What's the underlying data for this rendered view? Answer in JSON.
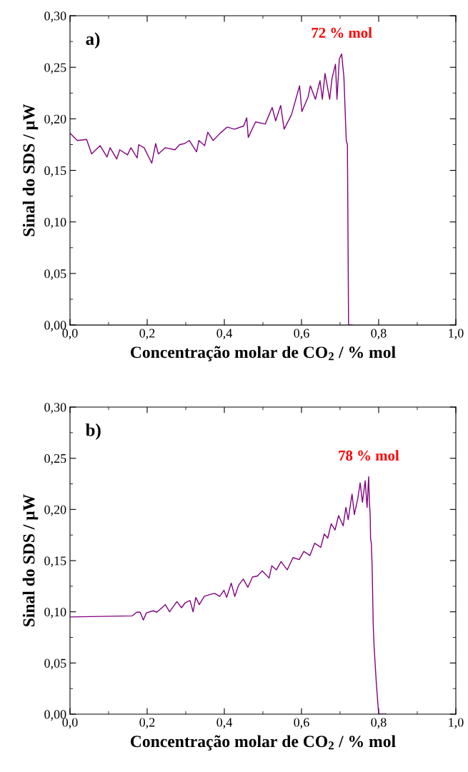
{
  "chart_data": [
    {
      "type": "line",
      "xlabel": "Concentração molar de CO$_{2}$ / % mol",
      "ylabel": "Sinal do SDS / μW",
      "annotations": [
        "a)",
        "72 % mol"
      ],
      "xlim": [
        0,
        1
      ],
      "ylim": [
        0,
        0.3
      ],
      "xticks": [
        {
          "value": 0,
          "label": "0,0"
        },
        {
          "value": 0.1,
          "label": null
        },
        {
          "value": 0.2,
          "label": "0,2"
        },
        {
          "value": 0.3,
          "label": null
        },
        {
          "value": 0.4,
          "label": "0,4"
        },
        {
          "value": 0.5,
          "label": null
        },
        {
          "value": 0.6,
          "label": "0,6"
        },
        {
          "value": 0.7,
          "label": null
        },
        {
          "value": 0.8,
          "label": "0,8"
        },
        {
          "value": 0.9,
          "label": null
        },
        {
          "value": 1.0,
          "label": "1,0"
        }
      ],
      "yticks": [
        {
          "value": 0,
          "label": "0,00"
        },
        {
          "value": 0.025,
          "label": null
        },
        {
          "value": 0.05,
          "label": "0,05"
        },
        {
          "value": 0.075,
          "label": null
        },
        {
          "value": 0.1,
          "label": "0,10"
        },
        {
          "value": 0.125,
          "label": null
        },
        {
          "value": 0.15,
          "label": "0,15"
        },
        {
          "value": 0.175,
          "label": null
        },
        {
          "value": 0.2,
          "label": "0,20"
        },
        {
          "value": 0.225,
          "label": null
        },
        {
          "value": 0.25,
          "label": "0,25"
        },
        {
          "value": 0.275,
          "label": null
        },
        {
          "value": 0.3,
          "label": "0,30"
        }
      ],
      "series": [
        {
          "color": "#800080",
          "x": [
            0.0,
            0.019,
            0.043,
            0.056,
            0.078,
            0.096,
            0.104,
            0.121,
            0.129,
            0.149,
            0.158,
            0.174,
            0.178,
            0.192,
            0.212,
            0.222,
            0.229,
            0.247,
            0.272,
            0.284,
            0.297,
            0.309,
            0.328,
            0.334,
            0.349,
            0.357,
            0.371,
            0.389,
            0.407,
            0.426,
            0.45,
            0.458,
            0.462,
            0.481,
            0.506,
            0.524,
            0.533,
            0.546,
            0.555,
            0.574,
            0.595,
            0.601,
            0.617,
            0.623,
            0.636,
            0.648,
            0.654,
            0.661,
            0.673,
            0.679,
            0.688,
            0.692,
            0.698,
            0.704,
            0.71,
            0.713,
            0.716,
            0.719,
            0.722,
            0.731
          ],
          "values": [
            0.186,
            0.179,
            0.18,
            0.166,
            0.174,
            0.163,
            0.172,
            0.161,
            0.17,
            0.165,
            0.172,
            0.162,
            0.175,
            0.172,
            0.157,
            0.176,
            0.166,
            0.172,
            0.17,
            0.175,
            0.176,
            0.179,
            0.168,
            0.179,
            0.174,
            0.187,
            0.179,
            0.186,
            0.192,
            0.19,
            0.193,
            0.201,
            0.182,
            0.197,
            0.195,
            0.211,
            0.198,
            0.213,
            0.19,
            0.204,
            0.232,
            0.207,
            0.221,
            0.232,
            0.219,
            0.237,
            0.219,
            0.244,
            0.219,
            0.239,
            0.253,
            0.219,
            0.258,
            0.263,
            0.24,
            0.209,
            0.179,
            0.175,
            0.0,
            0.0
          ]
        }
      ]
    },
    {
      "type": "line",
      "xlabel": "Concentração molar de CO$_{2}$ / % mol",
      "ylabel": "Sinal do SDS / μW",
      "annotations": [
        "b)",
        "78 % mol"
      ],
      "xlim": [
        0,
        1
      ],
      "ylim": [
        0,
        0.3
      ],
      "xticks": [
        {
          "value": 0,
          "label": "0,0"
        },
        {
          "value": 0.1,
          "label": null
        },
        {
          "value": 0.2,
          "label": "0,2"
        },
        {
          "value": 0.3,
          "label": null
        },
        {
          "value": 0.4,
          "label": "0,4"
        },
        {
          "value": 0.5,
          "label": null
        },
        {
          "value": 0.6,
          "label": "0,6"
        },
        {
          "value": 0.7,
          "label": null
        },
        {
          "value": 0.8,
          "label": "0,8"
        },
        {
          "value": 0.9,
          "label": null
        },
        {
          "value": 1.0,
          "label": "1,0"
        }
      ],
      "yticks": [
        {
          "value": 0,
          "label": "0,00"
        },
        {
          "value": 0.025,
          "label": null
        },
        {
          "value": 0.05,
          "label": "0,05"
        },
        {
          "value": 0.075,
          "label": null
        },
        {
          "value": 0.1,
          "label": "0,10"
        },
        {
          "value": 0.125,
          "label": null
        },
        {
          "value": 0.15,
          "label": "0,15"
        },
        {
          "value": 0.175,
          "label": null
        },
        {
          "value": 0.2,
          "label": "0,20"
        },
        {
          "value": 0.225,
          "label": null
        },
        {
          "value": 0.25,
          "label": "0,25"
        },
        {
          "value": 0.275,
          "label": null
        },
        {
          "value": 0.3,
          "label": "0,30"
        }
      ],
      "series": [
        {
          "color": "#800080",
          "x": [
            0.0,
            0.161,
            0.173,
            0.182,
            0.19,
            0.198,
            0.216,
            0.225,
            0.247,
            0.258,
            0.277,
            0.289,
            0.299,
            0.311,
            0.319,
            0.326,
            0.335,
            0.348,
            0.363,
            0.375,
            0.388,
            0.399,
            0.406,
            0.418,
            0.427,
            0.437,
            0.449,
            0.461,
            0.473,
            0.486,
            0.498,
            0.516,
            0.523,
            0.535,
            0.547,
            0.563,
            0.578,
            0.594,
            0.606,
            0.622,
            0.634,
            0.65,
            0.659,
            0.668,
            0.677,
            0.687,
            0.696,
            0.708,
            0.715,
            0.721,
            0.731,
            0.737,
            0.746,
            0.752,
            0.758,
            0.765,
            0.77,
            0.774,
            0.776,
            0.778,
            0.779,
            0.781,
            0.783,
            0.786,
            0.788,
            0.794,
            0.8,
            0.819
          ],
          "values": [
            0.095,
            0.096,
            0.0996,
            0.0996,
            0.092,
            0.099,
            0.101,
            0.0996,
            0.107,
            0.1,
            0.11,
            0.104,
            0.109,
            0.111,
            0.1,
            0.114,
            0.107,
            0.115,
            0.117,
            0.118,
            0.115,
            0.121,
            0.114,
            0.128,
            0.115,
            0.126,
            0.132,
            0.124,
            0.134,
            0.135,
            0.14,
            0.133,
            0.145,
            0.141,
            0.149,
            0.141,
            0.153,
            0.151,
            0.159,
            0.155,
            0.167,
            0.163,
            0.176,
            0.172,
            0.186,
            0.18,
            0.194,
            0.184,
            0.202,
            0.19,
            0.215,
            0.195,
            0.211,
            0.226,
            0.207,
            0.228,
            0.202,
            0.232,
            0.207,
            0.195,
            0.171,
            0.167,
            0.145,
            0.086,
            0.067,
            0.03,
            0.0,
            0.0
          ]
        }
      ]
    }
  ]
}
